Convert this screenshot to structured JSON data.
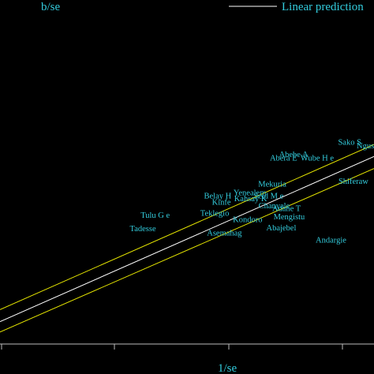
{
  "chart_data": {
    "type": "scatter",
    "ylabel": "b/se",
    "xlabel": "1/se",
    "legend": {
      "label": "Linear prediction",
      "position": "top-right"
    },
    "xlim": [
      0,
      1
    ],
    "ylim": [
      0,
      1
    ],
    "grid": false,
    "colors": {
      "background": "#000000",
      "text": "#33ccdd",
      "fit_line": "#ffffff",
      "band_lines": "#e6e600",
      "axis": "#bbbbbb"
    },
    "fit_line": {
      "x": [
        0,
        1
      ],
      "y": [
        0.065,
        0.545
      ]
    },
    "ci_upper": {
      "x": [
        0,
        1
      ],
      "y": [
        0.1,
        0.58
      ]
    },
    "ci_lower": {
      "x": [
        0,
        1
      ],
      "y": [
        0.035,
        0.51
      ]
    },
    "points": [
      {
        "label": "Sako S",
        "x": 0.935,
        "y": 0.588
      },
      {
        "label": "Ngusie",
        "x": 0.985,
        "y": 0.578
      },
      {
        "label": "Abebe A",
        "x": 0.785,
        "y": 0.553
      },
      {
        "label": "Abera E",
        "x": 0.758,
        "y": 0.543
      },
      {
        "label": "Wube H e",
        "x": 0.848,
        "y": 0.543
      },
      {
        "label": "Shiferaw",
        "x": 0.945,
        "y": 0.475
      },
      {
        "label": "Mekuria",
        "x": 0.728,
        "y": 0.467
      },
      {
        "label": "Yenealem",
        "x": 0.668,
        "y": 0.441
      },
      {
        "label": "Belay H",
        "x": 0.582,
        "y": 0.432
      },
      {
        "label": "Seid M e",
        "x": 0.718,
        "y": 0.432
      },
      {
        "label": "Kahsay K",
        "x": 0.67,
        "y": 0.424
      },
      {
        "label": "Kinfe",
        "x": 0.592,
        "y": 0.414
      },
      {
        "label": "Chanyale",
        "x": 0.733,
        "y": 0.404
      },
      {
        "label": "Adane T",
        "x": 0.766,
        "y": 0.396
      },
      {
        "label": "Teklegio",
        "x": 0.574,
        "y": 0.382
      },
      {
        "label": "Tulu G e",
        "x": 0.415,
        "y": 0.376
      },
      {
        "label": "Mengistu",
        "x": 0.773,
        "y": 0.371
      },
      {
        "label": "Kondoro",
        "x": 0.662,
        "y": 0.364
      },
      {
        "label": "Abajebel",
        "x": 0.752,
        "y": 0.339
      },
      {
        "label": "Tadesse",
        "x": 0.382,
        "y": 0.337
      },
      {
        "label": "Asemahag",
        "x": 0.6,
        "y": 0.324
      },
      {
        "label": "Andargie",
        "x": 0.885,
        "y": 0.304
      }
    ]
  }
}
